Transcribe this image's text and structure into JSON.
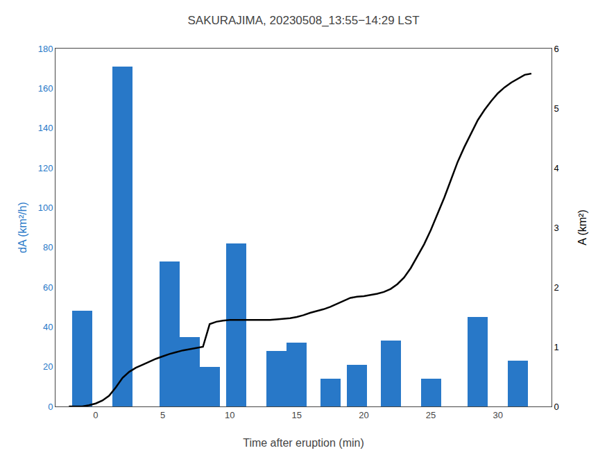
{
  "chart_data": {
    "type": "bar",
    "title": "SAKURAJIMA, 20230508_13:55−14:29 LST",
    "x_label": "Time after eruption (min)",
    "y_label": "dA (km²/h)",
    "y2_label": "A (km²)",
    "xlim": [
      -3,
      34
    ],
    "xticks": [
      0,
      5,
      10,
      15,
      20,
      25,
      30
    ],
    "ylim": [
      0,
      180
    ],
    "yticks": [
      0,
      20,
      40,
      60,
      80,
      100,
      120,
      140,
      160,
      180
    ],
    "y2lim": [
      0,
      6
    ],
    "y2ticks": [
      0,
      1,
      2,
      3,
      4,
      5,
      6
    ],
    "grid": false,
    "series": [
      {
        "type": "bar",
        "color": "#2878c8",
        "x": [
          -1.0,
          2.0,
          5.5,
          7.0,
          8.5,
          10.5,
          13.5,
          15.0,
          17.5,
          19.5,
          22.0,
          25.0,
          28.5,
          31.5
        ],
        "values": [
          48,
          171,
          73,
          35,
          20,
          82,
          28,
          32,
          14,
          21,
          33,
          14,
          45,
          23
        ]
      },
      {
        "type": "line",
        "axis": "y2",
        "color": "#000000",
        "x": [
          -2.0,
          -1.5,
          -1.0,
          -0.5,
          0.0,
          0.5,
          1.0,
          1.5,
          2.0,
          2.5,
          3.0,
          3.5,
          4.0,
          4.5,
          5.0,
          5.5,
          6.0,
          6.5,
          7.0,
          7.5,
          8.0,
          8.5,
          9.0,
          9.5,
          10.0,
          10.5,
          11.0,
          11.5,
          12.0,
          12.5,
          13.0,
          13.5,
          14.0,
          14.5,
          15.0,
          15.5,
          16.0,
          16.5,
          17.0,
          17.5,
          18.0,
          18.5,
          19.0,
          19.5,
          20.0,
          20.5,
          21.0,
          21.5,
          22.0,
          22.5,
          23.0,
          23.5,
          24.0,
          24.5,
          25.0,
          25.5,
          26.0,
          26.5,
          27.0,
          27.5,
          28.0,
          28.5,
          29.0,
          29.5,
          30.0,
          30.5,
          31.0,
          31.5,
          32.0,
          32.5
        ],
        "values": [
          0.0,
          0.0,
          0.0,
          0.02,
          0.05,
          0.1,
          0.18,
          0.32,
          0.48,
          0.58,
          0.65,
          0.7,
          0.75,
          0.8,
          0.84,
          0.88,
          0.91,
          0.94,
          0.96,
          0.98,
          1.0,
          1.38,
          1.42,
          1.44,
          1.45,
          1.45,
          1.45,
          1.45,
          1.45,
          1.45,
          1.45,
          1.46,
          1.47,
          1.48,
          1.5,
          1.53,
          1.57,
          1.6,
          1.63,
          1.67,
          1.72,
          1.77,
          1.82,
          1.84,
          1.85,
          1.87,
          1.89,
          1.92,
          1.97,
          2.05,
          2.16,
          2.32,
          2.52,
          2.72,
          2.96,
          3.22,
          3.5,
          3.8,
          4.1,
          4.35,
          4.58,
          4.8,
          4.97,
          5.12,
          5.25,
          5.35,
          5.43,
          5.5,
          5.56,
          5.58
        ]
      }
    ]
  }
}
